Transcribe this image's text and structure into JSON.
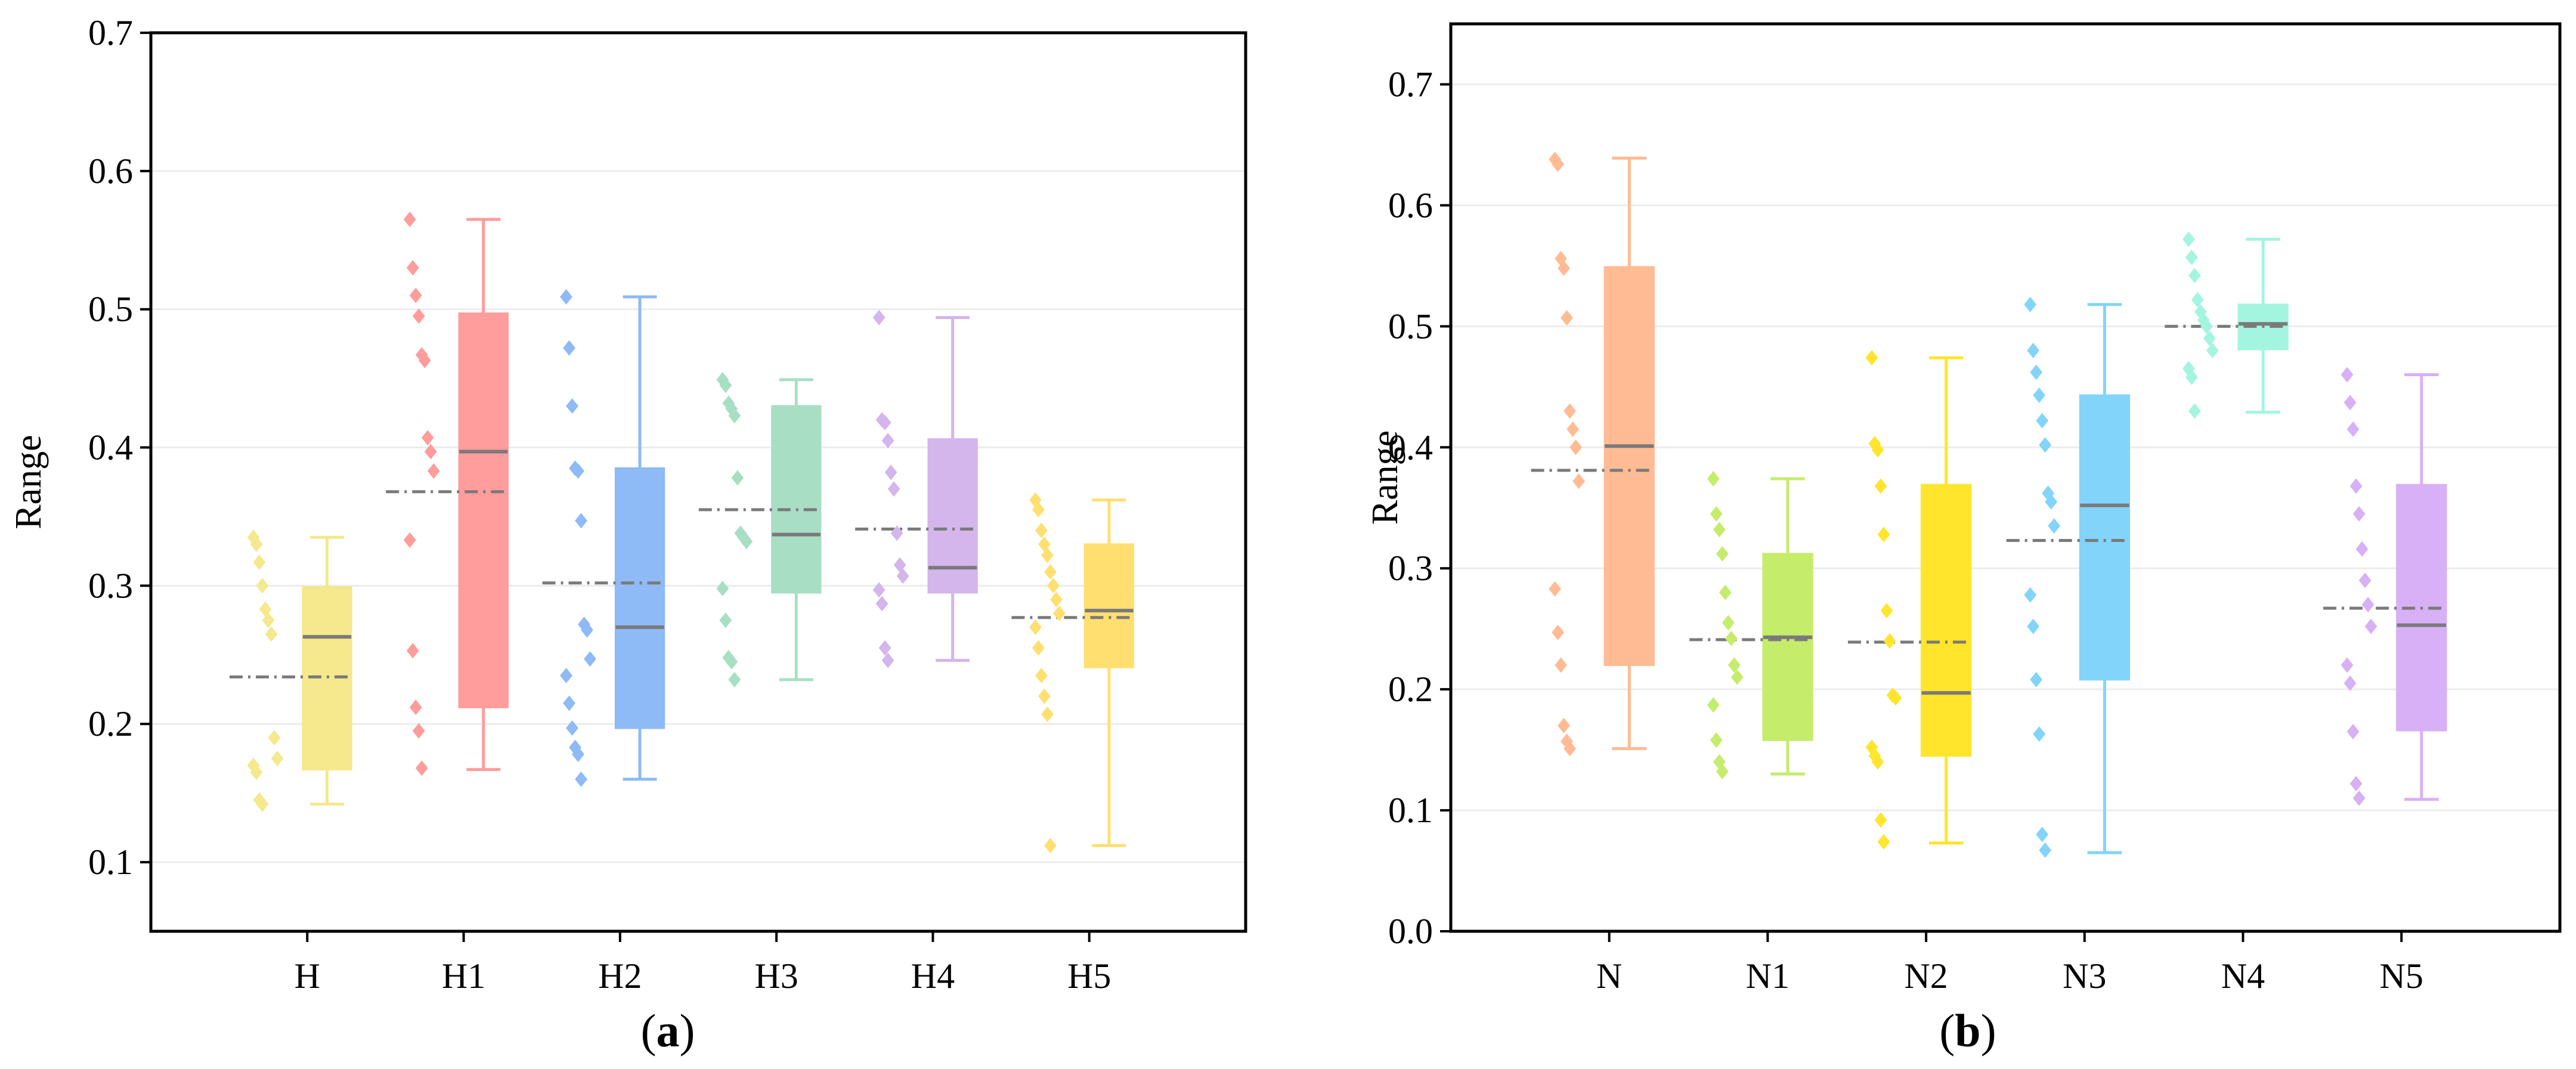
{
  "chart_data": [
    {
      "type": "box",
      "panel_label": "a",
      "ylabel": "Range",
      "xlabel": "",
      "ylim": [
        0.05,
        0.7
      ],
      "yticks": [
        0.1,
        0.2,
        0.3,
        0.4,
        0.5,
        0.6,
        0.7
      ],
      "grid": true,
      "categories": [
        "H",
        "H1",
        "H2",
        "H3",
        "H4",
        "H5"
      ],
      "series": [
        {
          "name": "H",
          "color": "#f5e88d",
          "min": 0.142,
          "q1": 0.167,
          "median": 0.263,
          "q3": 0.299,
          "max": 0.335,
          "mean": 0.234,
          "points": [
            0.335,
            0.33,
            0.317,
            0.3,
            0.283,
            0.275,
            0.265,
            0.19,
            0.175,
            0.17,
            0.165,
            0.145,
            0.142
          ]
        },
        {
          "name": "H1",
          "color": "#ff9c9c",
          "min": 0.167,
          "q1": 0.212,
          "median": 0.397,
          "q3": 0.497,
          "max": 0.565,
          "mean": 0.368,
          "points": [
            0.565,
            0.53,
            0.51,
            0.495,
            0.467,
            0.463,
            0.407,
            0.397,
            0.383,
            0.333,
            0.253,
            0.212,
            0.195,
            0.168
          ]
        },
        {
          "name": "H2",
          "color": "#8ebaf5",
          "min": 0.16,
          "q1": 0.197,
          "median": 0.27,
          "q3": 0.385,
          "max": 0.509,
          "mean": 0.302,
          "points": [
            0.509,
            0.472,
            0.43,
            0.385,
            0.383,
            0.347,
            0.272,
            0.268,
            0.247,
            0.235,
            0.215,
            0.197,
            0.183,
            0.178,
            0.16
          ]
        },
        {
          "name": "H3",
          "color": "#a8dfc4",
          "min": 0.232,
          "q1": 0.295,
          "median": 0.337,
          "q3": 0.43,
          "max": 0.449,
          "mean": 0.355,
          "points": [
            0.449,
            0.445,
            0.432,
            0.428,
            0.423,
            0.378,
            0.338,
            0.335,
            0.332,
            0.298,
            0.275,
            0.248,
            0.245,
            0.232
          ]
        },
        {
          "name": "H4",
          "color": "#d4b5ec",
          "min": 0.246,
          "q1": 0.295,
          "median": 0.313,
          "q3": 0.406,
          "max": 0.494,
          "mean": 0.341,
          "points": [
            0.494,
            0.42,
            0.418,
            0.405,
            0.382,
            0.37,
            0.338,
            0.315,
            0.307,
            0.297,
            0.287,
            0.255,
            0.246
          ]
        },
        {
          "name": "H5",
          "color": "#ffdf70",
          "min": 0.112,
          "q1": 0.241,
          "median": 0.282,
          "q3": 0.33,
          "max": 0.362,
          "mean": 0.277,
          "points": [
            0.362,
            0.355,
            0.34,
            0.33,
            0.322,
            0.31,
            0.3,
            0.29,
            0.28,
            0.27,
            0.255,
            0.235,
            0.22,
            0.207,
            0.112
          ]
        }
      ]
    },
    {
      "type": "box",
      "panel_label": "b",
      "ylabel": "Range",
      "xlabel": "",
      "ylim": [
        0.0,
        0.75
      ],
      "yticks": [
        0.0,
        0.1,
        0.2,
        0.3,
        0.4,
        0.5,
        0.6,
        0.7
      ],
      "grid": true,
      "categories": [
        "N",
        "N1",
        "N2",
        "N3",
        "N4",
        "N5"
      ],
      "series": [
        {
          "name": "N",
          "color": "#ffbb94",
          "min": 0.151,
          "q1": 0.22,
          "median": 0.401,
          "q3": 0.549,
          "max": 0.639,
          "mean": 0.381,
          "points": [
            0.638,
            0.634,
            0.556,
            0.548,
            0.507,
            0.43,
            0.415,
            0.4,
            0.372,
            0.283,
            0.247,
            0.22,
            0.17,
            0.157,
            0.151
          ]
        },
        {
          "name": "N1",
          "color": "#c6ec6c",
          "min": 0.13,
          "q1": 0.158,
          "median": 0.243,
          "q3": 0.312,
          "max": 0.374,
          "mean": 0.241,
          "points": [
            0.374,
            0.345,
            0.332,
            0.312,
            0.28,
            0.255,
            0.242,
            0.22,
            0.21,
            0.187,
            0.158,
            0.14,
            0.132
          ]
        },
        {
          "name": "N2",
          "color": "#ffe52c",
          "min": 0.073,
          "q1": 0.145,
          "median": 0.197,
          "q3": 0.369,
          "max": 0.474,
          "mean": 0.239,
          "points": [
            0.474,
            0.403,
            0.398,
            0.368,
            0.328,
            0.265,
            0.24,
            0.195,
            0.193,
            0.152,
            0.145,
            0.14,
            0.092,
            0.074
          ]
        },
        {
          "name": "N3",
          "color": "#82d4fa",
          "min": 0.065,
          "q1": 0.208,
          "median": 0.352,
          "q3": 0.443,
          "max": 0.518,
          "mean": 0.323,
          "points": [
            0.518,
            0.48,
            0.462,
            0.443,
            0.422,
            0.402,
            0.362,
            0.355,
            0.335,
            0.278,
            0.252,
            0.208,
            0.163,
            0.08,
            0.067
          ]
        },
        {
          "name": "N4",
          "color": "#a4f5e0",
          "min": 0.429,
          "q1": 0.481,
          "median": 0.502,
          "q3": 0.518,
          "max": 0.572,
          "mean": 0.5,
          "points": [
            0.572,
            0.557,
            0.542,
            0.522,
            0.512,
            0.505,
            0.5,
            0.49,
            0.48,
            0.465,
            0.458,
            0.43
          ]
        },
        {
          "name": "N5",
          "color": "#d8b0f5",
          "min": 0.109,
          "q1": 0.166,
          "median": 0.253,
          "q3": 0.369,
          "max": 0.46,
          "mean": 0.267,
          "points": [
            0.46,
            0.437,
            0.415,
            0.368,
            0.345,
            0.316,
            0.29,
            0.27,
            0.252,
            0.22,
            0.205,
            0.165,
            0.122,
            0.11
          ]
        }
      ]
    }
  ]
}
